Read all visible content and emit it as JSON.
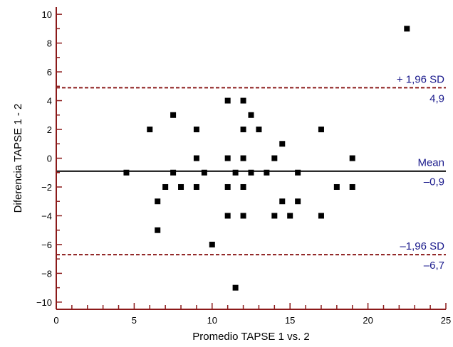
{
  "chart_data": {
    "type": "scatter",
    "title": "",
    "xlabel": "Promedio TAPSE 1 vs. 2",
    "ylabel": "Diferencia TAPSE 1 - 2",
    "xlim": [
      0,
      25
    ],
    "ylim": [
      -10.5,
      10.5
    ],
    "xticks": [
      0,
      5,
      10,
      15,
      20,
      25
    ],
    "xtick_labels": [
      "0",
      "5",
      "10",
      "15",
      "20",
      "25"
    ],
    "yticks": [
      10,
      8,
      6,
      4,
      2,
      0,
      -2,
      -4,
      -6,
      -8,
      -10
    ],
    "ytick_labels": [
      "10",
      "8",
      "6",
      "4",
      "2",
      "0",
      "−2",
      "−4",
      "−6",
      "−8",
      "−10"
    ],
    "grid": false,
    "lines": [
      {
        "kind": "upper-limit",
        "y": 4.9,
        "label": "+ 1,96 SD",
        "value_label": "4,9",
        "style": "dashed",
        "color": "#8b1a1a"
      },
      {
        "kind": "mean",
        "y": -0.9,
        "label": "Mean",
        "value_label": "–0,9",
        "style": "solid",
        "color": "#000000"
      },
      {
        "kind": "lower-limit",
        "y": -6.7,
        "label": "–1,96 SD",
        "value_label": "–6,7",
        "style": "dashed",
        "color": "#8b1a1a"
      }
    ],
    "points": [
      {
        "x": 4.5,
        "y": -1
      },
      {
        "x": 6.0,
        "y": 2
      },
      {
        "x": 6.5,
        "y": -3
      },
      {
        "x": 6.5,
        "y": -5
      },
      {
        "x": 7.0,
        "y": -2
      },
      {
        "x": 7.5,
        "y": 3
      },
      {
        "x": 7.5,
        "y": -1
      },
      {
        "x": 8.0,
        "y": -2
      },
      {
        "x": 9.0,
        "y": 2
      },
      {
        "x": 9.0,
        "y": 0
      },
      {
        "x": 9.0,
        "y": -2
      },
      {
        "x": 9.5,
        "y": -1
      },
      {
        "x": 10.0,
        "y": -6
      },
      {
        "x": 11.0,
        "y": 4
      },
      {
        "x": 11.0,
        "y": 0
      },
      {
        "x": 11.0,
        "y": -2
      },
      {
        "x": 11.0,
        "y": -4
      },
      {
        "x": 11.5,
        "y": -1
      },
      {
        "x": 11.5,
        "y": -9
      },
      {
        "x": 12.0,
        "y": 4
      },
      {
        "x": 12.0,
        "y": 2
      },
      {
        "x": 12.0,
        "y": 0
      },
      {
        "x": 12.0,
        "y": -2
      },
      {
        "x": 12.0,
        "y": -4
      },
      {
        "x": 12.5,
        "y": 3
      },
      {
        "x": 12.5,
        "y": -1
      },
      {
        "x": 13.0,
        "y": 2
      },
      {
        "x": 13.5,
        "y": -1
      },
      {
        "x": 14.0,
        "y": 0
      },
      {
        "x": 14.0,
        "y": -4
      },
      {
        "x": 14.5,
        "y": 1
      },
      {
        "x": 14.5,
        "y": -3
      },
      {
        "x": 15.0,
        "y": -4
      },
      {
        "x": 15.5,
        "y": -1
      },
      {
        "x": 15.5,
        "y": -3
      },
      {
        "x": 17.0,
        "y": 2
      },
      {
        "x": 17.0,
        "y": -4
      },
      {
        "x": 18.0,
        "y": -2
      },
      {
        "x": 19.0,
        "y": 0
      },
      {
        "x": 19.0,
        "y": -2
      },
      {
        "x": 22.5,
        "y": 9
      }
    ],
    "colors": {
      "axis": "#8b1a1a",
      "points": "#000000",
      "annotation_text": "#1a1a8c",
      "tick_text": "#000000"
    }
  }
}
